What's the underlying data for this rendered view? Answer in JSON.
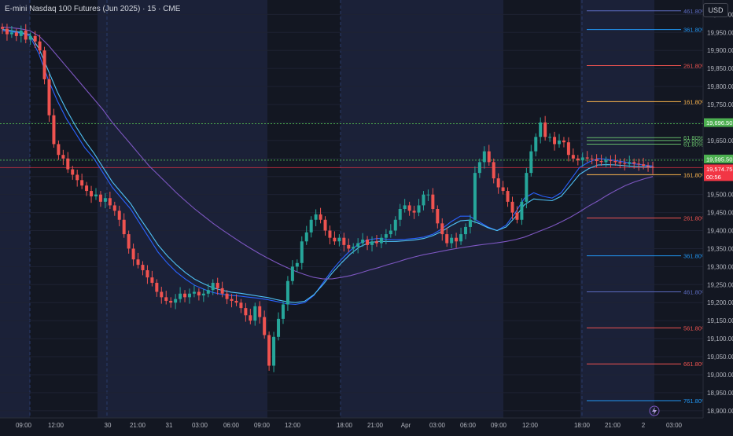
{
  "title": "E-mini Nasdaq 100 Futures (Jun 2025) · 15 · CME",
  "currency_button": "USD",
  "colors": {
    "background": "#131722",
    "session_shade": "#1b2138",
    "up": "#26a69a",
    "down": "#ef5350",
    "ema_fast": "#2962ff",
    "ema_mid": "#4fc3f7",
    "ema_slow": "#7e57c2"
  },
  "chart_data": {
    "type": "candlestick",
    "title": "E-mini Nasdaq 100 Futures (Jun 2025) · 15 · CME",
    "y_axis": {
      "ticks": [
        "20,000.00",
        "19,950.00",
        "19,900.00",
        "19,850.00",
        "19,800.00",
        "19,750.00",
        "19,700.00",
        "19,650.00",
        "19,600.00",
        "19,550.00",
        "19,500.00",
        "19,450.00",
        "19,400.00",
        "19,350.00",
        "19,300.00",
        "19,250.00",
        "19,200.00",
        "19,150.00",
        "19,100.00",
        "19,050.00",
        "19,000.00",
        "18,950.00",
        "18,900.00"
      ],
      "ylim": [
        18880,
        20040
      ]
    },
    "x_axis": {
      "ticks": [
        "09:00",
        "12:00",
        "30",
        "21:00",
        "31",
        "03:00",
        "06:00",
        "09:00",
        "12:00",
        "18:00",
        "21:00",
        "Apr",
        "03:00",
        "06:00",
        "09:00",
        "12:00",
        "18:00",
        "21:00",
        "2",
        "03:00"
      ]
    },
    "price_labels": [
      {
        "text": "19,696.50",
        "value": 19696.5,
        "color": "#4caf50"
      },
      {
        "text": "19,595.50",
        "value": 19595.5,
        "color": "#4caf50"
      },
      {
        "text": "19,574.75",
        "value": 19574.75,
        "color": "#f23645"
      },
      {
        "text": "00:56",
        "value": 19574.75,
        "color": "#f23645"
      }
    ],
    "fib_upper": [
      {
        "label": "461.80%",
        "value": 20010,
        "color": "#5c6bc0"
      },
      {
        "label": "361.80%",
        "value": 19958,
        "color": "#2196f3"
      },
      {
        "label": "261.80%",
        "value": 19858,
        "color": "#ef5350"
      },
      {
        "label": "161.80%",
        "value": 19758,
        "color": "#ffb74d"
      },
      {
        "label": "61.80%",
        "value": 19658,
        "color": "#66bb6a"
      },
      {
        "label": "50.00%",
        "value": 19650,
        "color": "#66bb6a"
      },
      {
        "label": "61.80%",
        "value": 19640,
        "color": "#66bb6a"
      }
    ],
    "fib_lower": [
      {
        "label": "161.80%",
        "value": 19555,
        "color": "#ffb74d"
      },
      {
        "label": "261.80%",
        "value": 19435,
        "color": "#ef5350"
      },
      {
        "label": "361.80%",
        "value": 19330,
        "color": "#2196f3"
      },
      {
        "label": "461.80%",
        "value": 19230,
        "color": "#5c6bc0"
      },
      {
        "label": "561.80%",
        "value": 19130,
        "color": "#ef5350"
      },
      {
        "label": "661.80%",
        "value": 19030,
        "color": "#ef5350"
      },
      {
        "label": "761.80%",
        "value": 18928,
        "color": "#2196f3"
      }
    ],
    "series": [
      {
        "name": "",
        "kind": "price",
        "values": [
          19960,
          19945,
          19950,
          19940,
          19955,
          19930,
          19940,
          19925,
          19900,
          19820,
          19720,
          19640,
          19610,
          19600,
          19570,
          19555,
          19540,
          19525,
          19510,
          19495,
          19500,
          19480,
          19490,
          19470,
          19455,
          19430,
          19390,
          19350,
          19320,
          19305,
          19290,
          19270,
          19255,
          19230,
          19215,
          19205,
          19200,
          19210,
          19225,
          19215,
          19225,
          19230,
          19220,
          19225,
          19235,
          19255,
          19240,
          19225,
          19210,
          19205,
          19200,
          19185,
          19165,
          19150,
          19190,
          19160,
          19110,
          19025,
          19105,
          19155,
          19195,
          19260,
          19300,
          19310,
          19370,
          19395,
          19430,
          19445,
          19430,
          19400,
          19380,
          19370,
          19380,
          19360,
          19350,
          19355,
          19365,
          19375,
          19360,
          19370,
          19365,
          19380,
          19390,
          19400,
          19430,
          19460,
          19470,
          19455,
          19450,
          19470,
          19500,
          19500,
          19460,
          19420,
          19390,
          19365,
          19380,
          19370,
          19390,
          19410,
          19430,
          19560,
          19590,
          19620,
          19590,
          19545,
          19520,
          19510,
          19480,
          19450,
          19430,
          19480,
          19560,
          19620,
          19660,
          19700,
          19660,
          19660,
          19640,
          19650,
          19645,
          19610,
          19600,
          19595,
          19603,
          19600,
          19598,
          19593,
          19590,
          19595,
          19593,
          19590,
          19587,
          19585,
          19590,
          19586,
          19584,
          19580,
          19577,
          19575
        ]
      },
      {
        "name": "",
        "kind": "ema",
        "color": "#2962ff",
        "values": [
          19955,
          19952,
          19948,
          19940,
          19890,
          19820,
          19760,
          19710,
          19670,
          19630,
          19600,
          19560,
          19520,
          19490,
          19460,
          19420,
          19380,
          19340,
          19310,
          19285,
          19265,
          19248,
          19237,
          19228,
          19223,
          19220,
          19218,
          19215,
          19212,
          19208,
          19203,
          19197,
          19195,
          19200,
          19220,
          19255,
          19290,
          19320,
          19345,
          19365,
          19375,
          19378,
          19376,
          19375,
          19376,
          19378,
          19382,
          19390,
          19405,
          19425,
          19440,
          19440,
          19425,
          19410,
          19400,
          19415,
          19450,
          19490,
          19505,
          19495,
          19490,
          19505,
          19540,
          19575,
          19590,
          19600,
          19598,
          19594,
          19590,
          19585,
          19582,
          19579
        ]
      },
      {
        "name": "",
        "kind": "ema",
        "color": "#4fc3f7",
        "values": [
          19958,
          19955,
          19950,
          19944,
          19905,
          19845,
          19785,
          19735,
          19690,
          19650,
          19615,
          19575,
          19535,
          19505,
          19475,
          19435,
          19398,
          19360,
          19330,
          19305,
          19283,
          19265,
          19252,
          19241,
          19234,
          19229,
          19226,
          19222,
          19218,
          19214,
          19208,
          19203,
          19200,
          19204,
          19222,
          19250,
          19282,
          19310,
          19335,
          19355,
          19366,
          19370,
          19370,
          19370,
          19372,
          19374,
          19378,
          19386,
          19398,
          19414,
          19427,
          19429,
          19420,
          19408,
          19400,
          19410,
          19438,
          19472,
          19488,
          19485,
          19483,
          19495,
          19525,
          19556,
          19572,
          19582,
          19583,
          19582,
          19580,
          19578,
          19577,
          19576
        ]
      },
      {
        "name": "",
        "kind": "ema",
        "color": "#7e57c2",
        "values": [
          19965,
          19963,
          19960,
          19955,
          19940,
          19915,
          19885,
          19855,
          19825,
          19795,
          19765,
          19735,
          19700,
          19670,
          19640,
          19610,
          19580,
          19555,
          19530,
          19505,
          19482,
          19460,
          19440,
          19420,
          19402,
          19385,
          19368,
          19352,
          19337,
          19323,
          19310,
          19298,
          19287,
          19278,
          19270,
          19266,
          19266,
          19270,
          19275,
          19282,
          19290,
          19297,
          19305,
          19312,
          19320,
          19327,
          19333,
          19338,
          19343,
          19348,
          19352,
          19356,
          19360,
          19363,
          19366,
          19370,
          19375,
          19382,
          19392,
          19402,
          19412,
          19424,
          19437,
          19452,
          19468,
          19482,
          19498,
          19512,
          19525,
          19535,
          19543,
          19550
        ]
      }
    ]
  }
}
